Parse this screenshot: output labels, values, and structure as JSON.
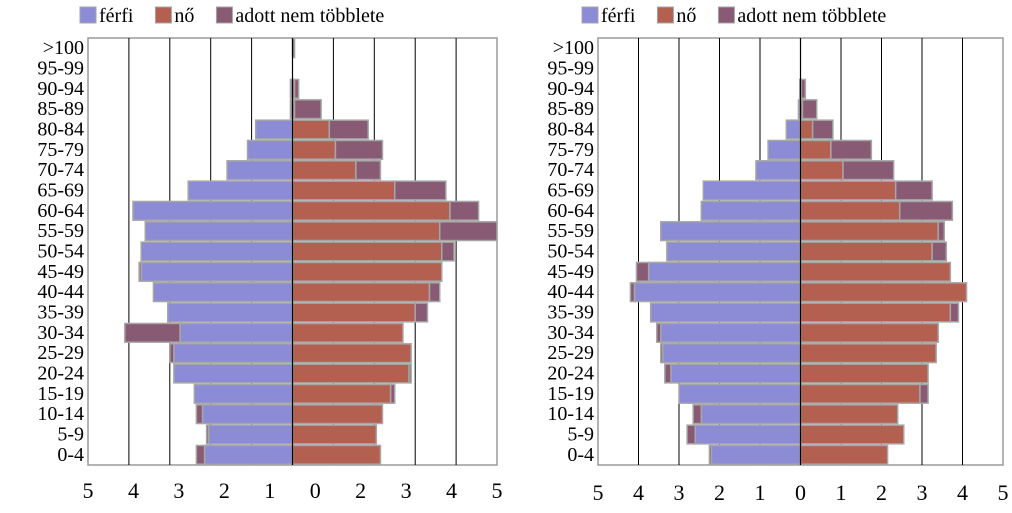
{
  "legend": {
    "items": [
      {
        "label": "férfi",
        "color": "#8c8cd6"
      },
      {
        "label": "nő",
        "color": "#b46050"
      },
      {
        "label": "adott nem többlete",
        "color": "#885a74"
      }
    ]
  },
  "chart_data": [
    {
      "type": "bar",
      "orientation": "horizontal",
      "title": "",
      "categories": [
        "0-4",
        "5-9",
        "10-14",
        "15-19",
        "20-24",
        "25-29",
        "30-34",
        "35-39",
        "40-44",
        "45-49",
        "50-54",
        "55-59",
        "60-64",
        "65-69",
        "70-74",
        "75-79",
        "80-84",
        "85-89",
        "90-94",
        "95-99",
        ">100"
      ],
      "series": [
        {
          "name": "férfi",
          "values": [
            2.15,
            2.05,
            2.2,
            2.4,
            2.9,
            2.9,
            2.75,
            3.05,
            3.4,
            3.7,
            3.7,
            3.6,
            3.9,
            2.55,
            1.6,
            1.1,
            0.9,
            0.05,
            0.05,
            0,
            0
          ]
        },
        {
          "name": "nő",
          "values": [
            2.15,
            2.05,
            2.2,
            2.4,
            2.85,
            2.9,
            2.7,
            3.0,
            3.35,
            3.65,
            3.65,
            3.6,
            3.85,
            2.5,
            1.55,
            1.05,
            0.9,
            0.05,
            0.05,
            0,
            0
          ]
        },
        {
          "name": "adott nem többlete",
          "side_sign": [
            -1,
            -1,
            -1,
            1,
            1,
            -1,
            -1,
            1,
            1,
            -1,
            1,
            1,
            1,
            1,
            1,
            1,
            1,
            1,
            1,
            0,
            1
          ],
          "values": [
            0.2,
            0.05,
            0.15,
            0.1,
            0.05,
            0.1,
            1.35,
            0.3,
            0.25,
            0.05,
            0.3,
            1.4,
            0.7,
            1.25,
            0.6,
            1.15,
            0.95,
            0.65,
            0.1,
            0,
            0.05
          ]
        }
      ],
      "xlim": [
        -5,
        5
      ],
      "xticks": [
        "5",
        "4",
        "3",
        "2",
        "1",
        "0",
        "2",
        "3",
        "4",
        "5"
      ],
      "grid": "vertical"
    },
    {
      "type": "bar",
      "orientation": "horizontal",
      "title": "",
      "categories": [
        "0-4",
        "5-9",
        "10-14",
        "15-19",
        "20-24",
        "25-29",
        "30-34",
        "35-39",
        "40-44",
        "45-49",
        "50-54",
        "55-59",
        "60-64",
        "65-69",
        "70-74",
        "75-79",
        "80-84",
        "85-89",
        "90-94",
        "95-99",
        ">100"
      ],
      "series": [
        {
          "name": "férfi",
          "values": [
            2.2,
            2.6,
            2.45,
            3.0,
            3.2,
            3.4,
            3.45,
            3.7,
            4.1,
            3.75,
            3.3,
            3.45,
            2.45,
            2.4,
            1.1,
            0.8,
            0.35,
            0.05,
            0.02,
            0,
            0
          ]
        },
        {
          "name": "nő",
          "values": [
            2.15,
            2.55,
            2.4,
            2.95,
            3.15,
            3.35,
            3.4,
            3.7,
            4.1,
            3.7,
            3.25,
            3.4,
            2.45,
            2.35,
            1.05,
            0.75,
            0.3,
            0.05,
            0.02,
            0,
            0
          ]
        },
        {
          "name": "adott nem többlete",
          "side_sign": [
            -1,
            -1,
            -1,
            1,
            -1,
            -1,
            -1,
            1,
            -1,
            -1,
            1,
            1,
            1,
            1,
            1,
            1,
            1,
            1,
            1,
            0,
            0
          ],
          "values": [
            0.05,
            0.2,
            0.2,
            0.2,
            0.15,
            0.05,
            0.1,
            0.2,
            0.1,
            0.3,
            0.35,
            0.15,
            1.3,
            0.9,
            1.25,
            1.0,
            0.5,
            0.35,
            0.1,
            0,
            0
          ]
        }
      ],
      "xlim": [
        -5,
        5
      ],
      "xticks": [
        "5",
        "4",
        "3",
        "2",
        "1",
        "0",
        "1",
        "2",
        "3",
        "4",
        "5"
      ],
      "grid": "vertical"
    }
  ]
}
